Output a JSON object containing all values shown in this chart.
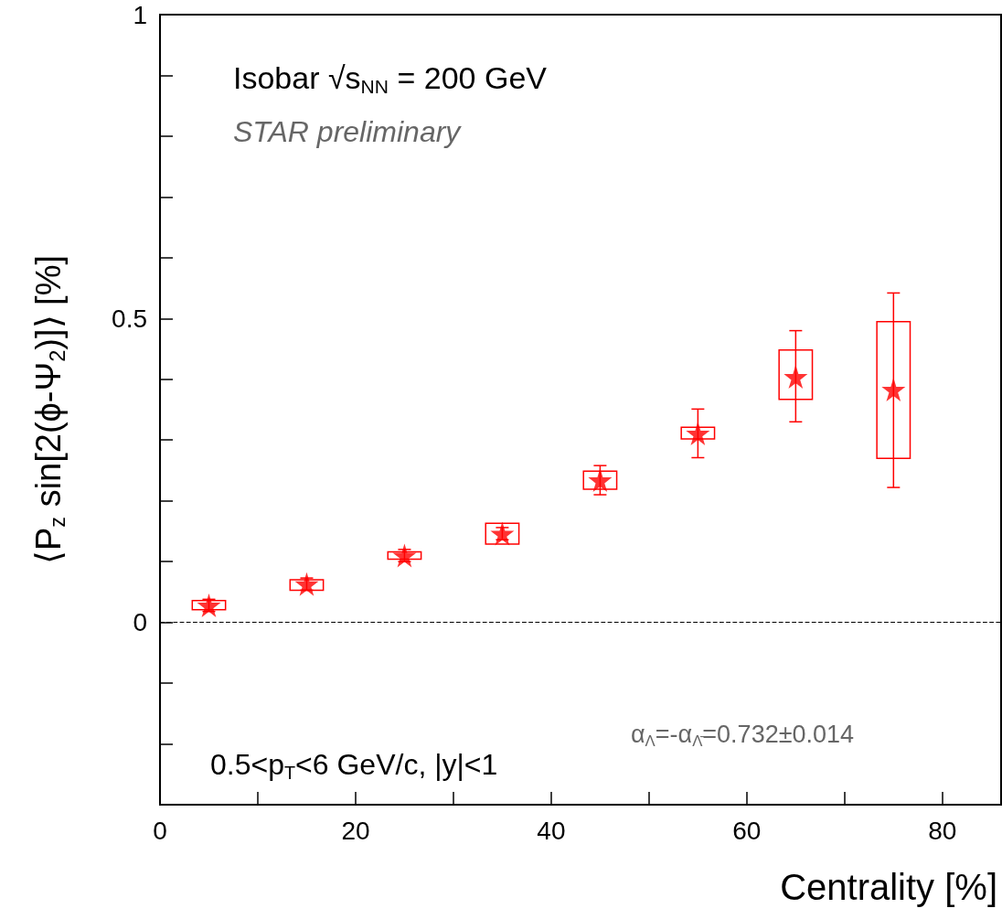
{
  "chart_data": {
    "type": "scatter",
    "title": "Isobar √s$_{NN}$ = 200 GeV",
    "subtitle": "STAR preliminary",
    "xlabel": "Centrality [%]",
    "ylabel": "⟨P$_{z}$ sin[2(ϕ-Ψ$_{2}$)]⟩ [%]",
    "annotations": [
      "0.5<p$_{T}$<6 GeV/c, |y|<1",
      "α$_{Λ}$=-α$_{Λ̄}$=0.732±0.014"
    ],
    "xlim": [
      0,
      86
    ],
    "xticks": [
      0,
      {
        "value": 10,
        "label": null
      },
      20,
      {
        "value": 30,
        "label": null
      },
      40,
      {
        "value": 50,
        "label": null
      },
      60,
      {
        "value": 70,
        "label": null
      },
      80
    ],
    "ylim": [
      -0.3,
      1
    ],
    "yticks": [
      {
        "value": -0.2,
        "label": null
      },
      {
        "value": -0.1,
        "label": null
      },
      0,
      {
        "value": 0.1,
        "label": null
      },
      {
        "value": 0.2,
        "label": null
      },
      {
        "value": 0.3,
        "label": null
      },
      {
        "value": 0.4,
        "label": null
      },
      0.5,
      {
        "value": 0.6,
        "label": null
      },
      {
        "value": 0.7,
        "label": null
      },
      {
        "value": 0.8,
        "label": null
      },
      {
        "value": 0.9,
        "label": null
      },
      1
    ],
    "grid": false,
    "marker": "star",
    "ref_lines": [
      {
        "axis": "y",
        "value": 0,
        "line_style": "dashed",
        "color": "#000000"
      }
    ],
    "series": [
      {
        "type": "bar",
        "color": "#ff0000",
        "x": [
          5,
          15,
          25,
          35,
          45,
          55,
          65,
          75
        ],
        "base": [
          0.021,
          0.053,
          0.104,
          0.129,
          0.219,
          0.302,
          0.367,
          0.27
        ],
        "values": [
          0.015,
          0.017,
          0.012,
          0.034,
          0.03,
          0.019,
          0.081,
          0.225
        ]
      },
      {
        "color": "#ff0000",
        "x": [
          5,
          15,
          25,
          35,
          45,
          55,
          65,
          75
        ],
        "values": [
          0.028,
          0.063,
          0.11,
          0.146,
          0.234,
          0.311,
          0.404,
          0.383
        ],
        "errors": [
          0.01,
          0.01,
          0.01,
          0.01,
          0.024,
          0.04,
          [
            0.33,
            0.48
          ],
          [
            0.222,
            0.542
          ]
        ]
      }
    ]
  }
}
